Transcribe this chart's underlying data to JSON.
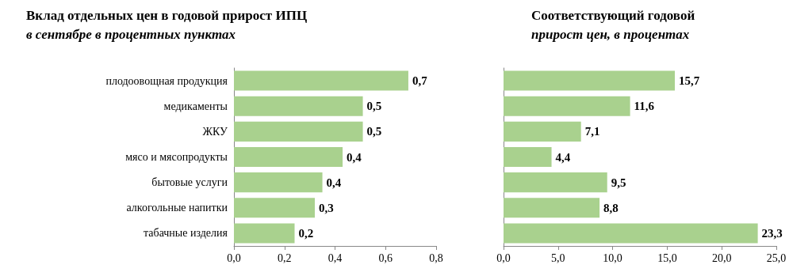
{
  "chart_data": [
    {
      "type": "bar",
      "orientation": "horizontal",
      "title": "Вклад отдельных цен в годовой прирост ИПЦ",
      "subtitle": "в сентябре в процентных пунктах",
      "categories": [
        "плодоовощная продукция",
        "медикаменты",
        "ЖКУ",
        "мясо и мясопродукты",
        "бытовые услуги",
        "алкогольные напитки",
        "табачные изделия"
      ],
      "values": [
        0.69,
        0.51,
        0.51,
        0.43,
        0.35,
        0.32,
        0.24
      ],
      "value_labels": [
        "0,7",
        "0,5",
        "0,5",
        "0,4",
        "0,4",
        "0,3",
        "0,2"
      ],
      "color": "#a9d18e",
      "xlim": [
        0,
        0.8
      ],
      "xticks": [
        {
          "value": 0,
          "label": "0,0"
        },
        {
          "value": 0.2,
          "label": "0,2"
        },
        {
          "value": 0.4,
          "label": "0,4"
        },
        {
          "value": 0.6,
          "label": "0,6"
        },
        {
          "value": 0.8,
          "label": "0,8"
        }
      ],
      "grid": false
    },
    {
      "type": "bar",
      "orientation": "horizontal",
      "title": "Соответствующий годовой",
      "subtitle": "прирост цен, в процентах",
      "categories": [
        null,
        null,
        null,
        null,
        null,
        null,
        null
      ],
      "values": [
        15.7,
        11.6,
        7.1,
        4.4,
        9.5,
        8.8,
        23.3
      ],
      "value_labels": [
        "15,7",
        "11,6",
        "7,1",
        "4,4",
        "9,5",
        "8,8",
        "23,3"
      ],
      "color": "#a9d18e",
      "xlim": [
        0,
        25
      ],
      "xticks": [
        {
          "value": 0,
          "label": "0,0"
        },
        {
          "value": 5,
          "label": "5,0"
        },
        {
          "value": 10,
          "label": "10,0"
        },
        {
          "value": 15,
          "label": "15,0"
        },
        {
          "value": 20,
          "label": "20,0"
        },
        {
          "value": 25,
          "label": "25,0"
        }
      ],
      "grid": false
    }
  ]
}
